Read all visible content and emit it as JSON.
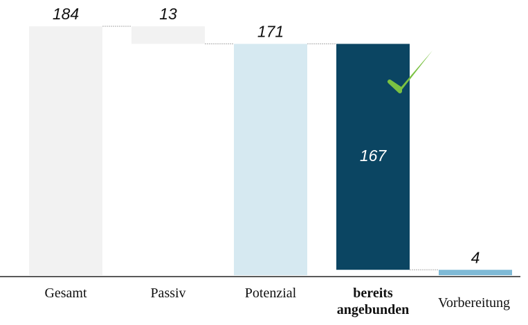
{
  "chart_data": {
    "type": "waterfall",
    "categories": [
      "Gesamt",
      "Passiv",
      "Potenzial",
      "bereits angebunden",
      "Vorbereitung"
    ],
    "values": [
      184,
      13,
      171,
      167,
      4
    ],
    "measure": [
      "total",
      "decrease",
      "total",
      "decrease",
      "total"
    ],
    "colors": [
      "#f2f2f2",
      "#f2f2f2",
      "#d6e9f1",
      "#0b4562",
      "#7fbad6"
    ],
    "bold": [
      false,
      false,
      false,
      true,
      false
    ],
    "ylim": [
      0,
      184
    ]
  }
}
